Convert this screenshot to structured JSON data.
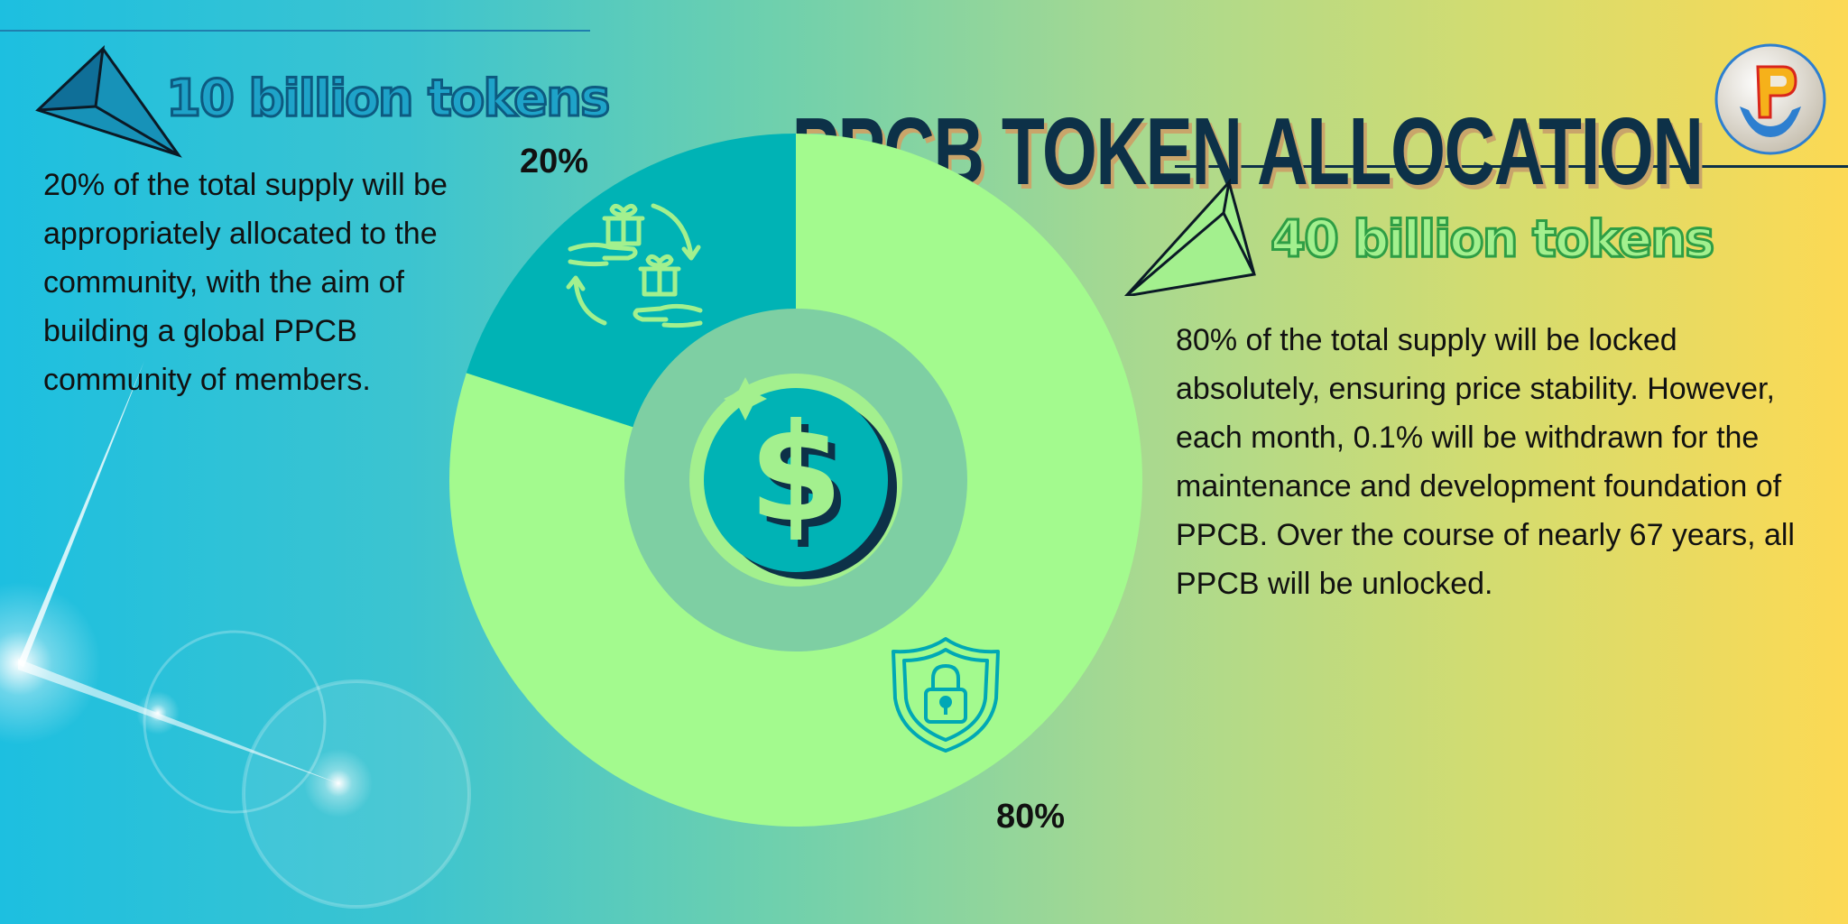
{
  "title": "PPCB TOKEN ALLOCATION",
  "left_headline": "10 billion tokens",
  "right_headline": "40 billion tokens",
  "left_description": "20% of the total supply will be appropriately allocated to the community, with the aim of building a global PPCB community of members.",
  "right_description": "80% of the total supply will be locked absolutely, ensuring price stability. However, each month, 0.1% will be withdrawn for the maintenance and development foundation of PPCB. Over the course of nearly 67 years, all PPCB will be unlocked.",
  "chart_data": {
    "type": "pie",
    "style": "donut",
    "title": "PPCB TOKEN ALLOCATION",
    "slices": [
      {
        "label": "20%",
        "value": 20,
        "color": "#00b3b5",
        "icon": "gift-exchange-icon"
      },
      {
        "label": "80%",
        "value": 80,
        "color": "#a3fa8e",
        "icon": "shield-lock-icon"
      }
    ],
    "center_icon": "dollar-icon",
    "inner_ring_color": "#7ecfa3"
  },
  "colors": {
    "navy": "#0d3148",
    "teal": "#00b3b5",
    "light_green": "#a3fa8e"
  },
  "icons": [
    "pyramid-icon",
    "ppcb-logo",
    "gift-exchange-icon",
    "shield-lock-icon",
    "dollar-icon"
  ]
}
